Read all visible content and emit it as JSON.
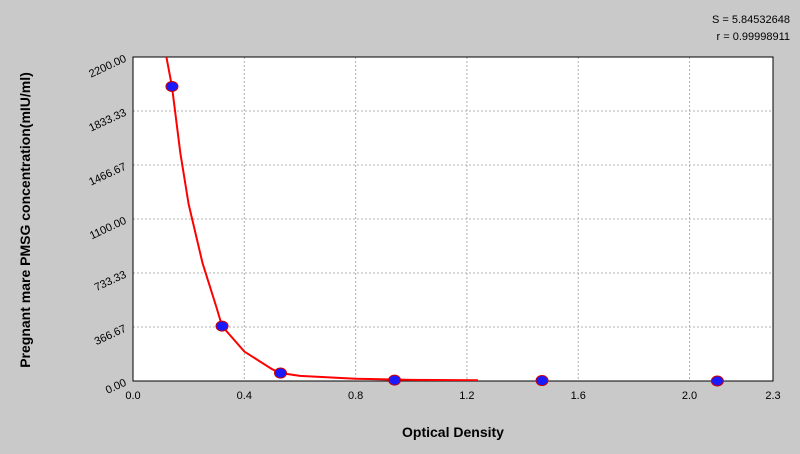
{
  "chart_data": {
    "type": "scatter",
    "stats": [
      "S = 5.84532648",
      "r = 0.99998911"
    ],
    "x_label": "Optical Density",
    "y_label": "Pregnant mare PMSG concentration(mIU/ml)",
    "xlim": [
      0,
      2.3
    ],
    "ylim": [
      0,
      2200
    ],
    "xticks": [
      {
        "value": 0,
        "label": "0.0"
      },
      0.4,
      0.8,
      1.2,
      1.6,
      {
        "value": 2,
        "label": "2.0"
      },
      2.3
    ],
    "yticks": [
      {
        "value": 0,
        "label": "0.00"
      },
      {
        "value": 366.67,
        "label": "366.67"
      },
      {
        "value": 733.33,
        "label": "733.33"
      },
      {
        "value": 1100,
        "label": "1100.00"
      },
      {
        "value": 1466.67,
        "label": "1466.67"
      },
      {
        "value": 1833.33,
        "label": "1833.33"
      },
      {
        "value": 2200,
        "label": "2200.00"
      }
    ],
    "grid": true,
    "series": [
      {
        "kind": "points",
        "color": "#1a1aff",
        "x": [
          0.14,
          0.32,
          0.53,
          0.94,
          1.47,
          2.1
        ],
        "values": [
          2000,
          373,
          54,
          6,
          3,
          0
        ]
      },
      {
        "kind": "curve",
        "color": "#ff0000",
        "x": [
          0.12,
          0.14,
          0.17,
          0.2,
          0.25,
          0.3,
          0.32,
          0.4,
          0.5,
          0.53,
          0.6,
          0.8,
          1.0,
          1.24
        ],
        "values": [
          2200,
          2000,
          1550,
          1200,
          800,
          500,
          373,
          200,
          80,
          54,
          35,
          15,
          8,
          5
        ]
      }
    ]
  }
}
